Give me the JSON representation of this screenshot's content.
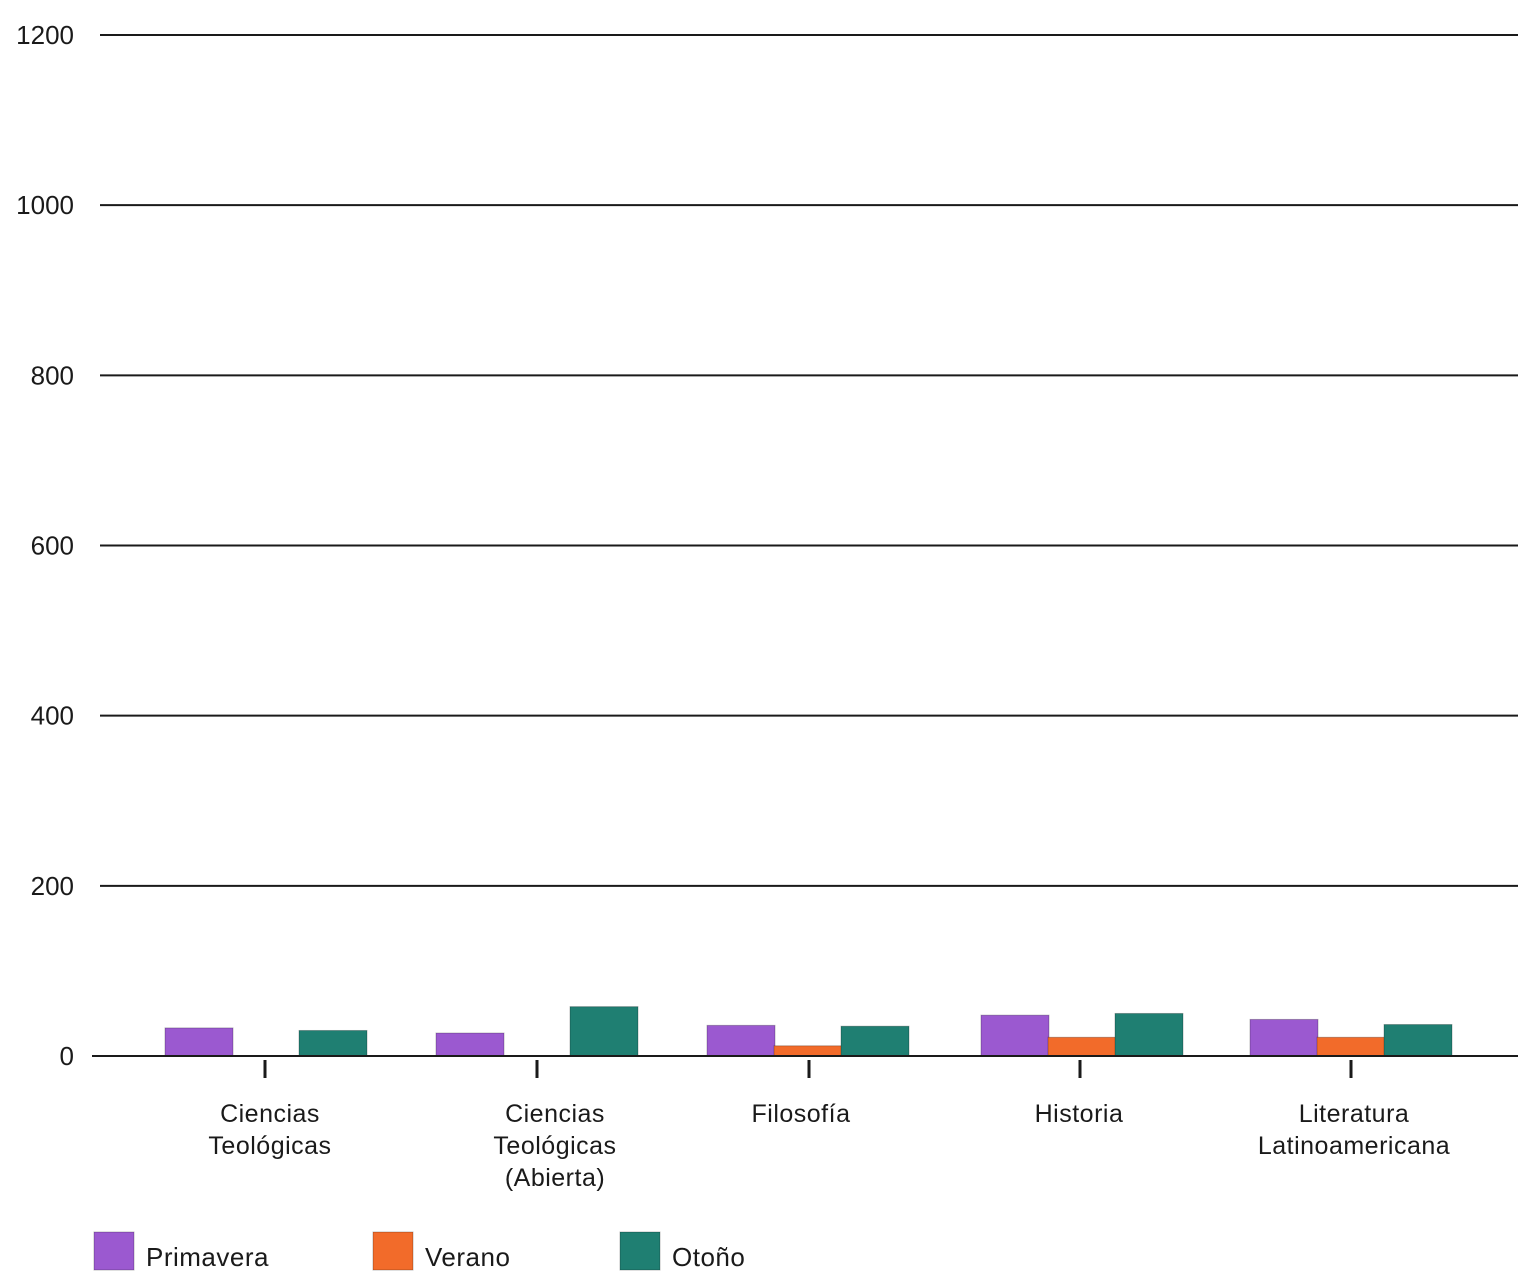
{
  "chart_data": {
    "type": "bar",
    "title": "",
    "xlabel": "",
    "ylabel": "",
    "ylim": [
      0,
      1200
    ],
    "yticks": [
      0,
      200,
      400,
      600,
      800,
      1000,
      1200
    ],
    "grid": true,
    "legend_position": "bottom-left",
    "categories": [
      [
        "Ciencias",
        "Teológicas"
      ],
      [
        "Ciencias",
        "Teológicas",
        "(Abierta)"
      ],
      [
        "Filosofía"
      ],
      [
        "Historia"
      ],
      [
        "Literatura",
        "Latinoamericana"
      ]
    ],
    "series": [
      {
        "name": "Primavera",
        "color": "#9b59d0",
        "values": [
          33,
          27,
          36,
          48,
          43
        ]
      },
      {
        "name": "Verano",
        "color": "#f26b2a",
        "values": [
          0,
          0,
          12,
          22,
          22
        ]
      },
      {
        "name": "Otoño",
        "color": "#1f7f72",
        "values": [
          30,
          58,
          35,
          50,
          37
        ]
      }
    ]
  }
}
